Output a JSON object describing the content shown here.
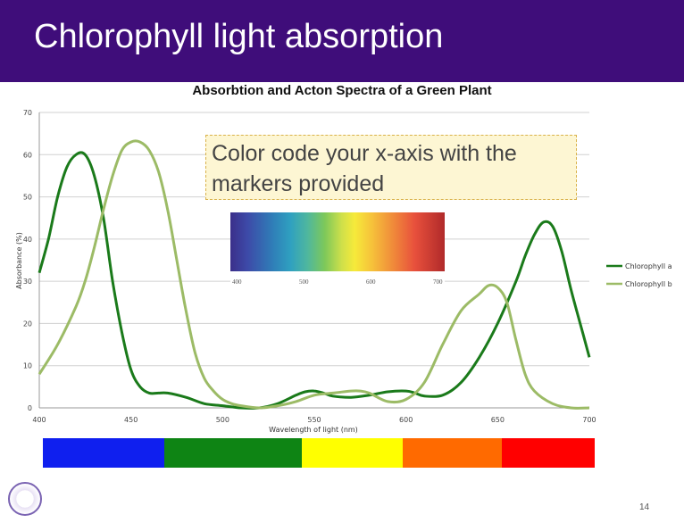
{
  "slide": {
    "title": "Chlorophyll light absorption",
    "page_number": "14",
    "note": "Color code your x-axis with the markers provided",
    "spectrum_scale": [
      "400",
      "500",
      "600",
      "700"
    ],
    "color_bar": [
      "#0f1fef",
      "#0e8414",
      "#ffff00",
      "#ff6a00",
      "#ff0000"
    ],
    "title_bar_color": "#3f0d7a"
  },
  "chart_data": {
    "type": "line",
    "title": "Absorbtion and Acton Spectra of a Green Plant",
    "xlabel": "Wavelength of light (nm)",
    "ylabel": "Absorbance (%)",
    "xlim": [
      400,
      700
    ],
    "ylim": [
      0,
      70
    ],
    "xticks": [
      "400",
      "450",
      "500",
      "550",
      "600",
      "650",
      "700"
    ],
    "yticks": [
      "0",
      "10",
      "20",
      "30",
      "40",
      "50",
      "60",
      "70"
    ],
    "grid": true,
    "legend_position": "right",
    "series": [
      {
        "name": "Chlorophyll a",
        "color": "#1a7a1a",
        "x": [
          400,
          405,
          410,
          415,
          420,
          425,
          430,
          435,
          440,
          445,
          450,
          455,
          460,
          465,
          470,
          480,
          490,
          500,
          510,
          520,
          530,
          540,
          545,
          550,
          555,
          560,
          570,
          580,
          590,
          600,
          605,
          610,
          620,
          630,
          640,
          650,
          660,
          665,
          670,
          675,
          680,
          685,
          690,
          695,
          700
        ],
        "y": [
          32,
          40,
          50,
          57,
          60,
          60,
          55,
          45,
          30,
          18,
          9,
          5,
          3.5,
          3.5,
          3.5,
          2.5,
          1,
          0.5,
          0,
          0,
          1,
          3,
          3.8,
          4,
          3.5,
          2.8,
          2.5,
          3,
          3.8,
          4,
          3.5,
          2.8,
          3,
          6,
          12,
          20,
          30,
          36,
          41,
          44,
          43,
          37,
          28,
          20,
          12
        ]
      },
      {
        "name": "Chlorophyll b",
        "color": "#9cbb66",
        "x": [
          400,
          410,
          420,
          425,
          430,
          435,
          440,
          445,
          450,
          455,
          460,
          465,
          470,
          475,
          480,
          485,
          490,
          495,
          500,
          505,
          510,
          520,
          530,
          540,
          550,
          560,
          570,
          575,
          580,
          590,
          600,
          610,
          620,
          630,
          640,
          645,
          650,
          655,
          660,
          665,
          670,
          680,
          690,
          700
        ],
        "y": [
          8,
          15,
          24,
          30,
          38,
          47,
          55,
          61,
          63,
          63,
          61,
          56,
          47,
          35,
          23,
          13,
          7,
          4,
          2,
          1,
          0.5,
          0,
          0.5,
          1.5,
          3,
          3.5,
          4,
          4,
          3.5,
          1.5,
          2,
          6,
          15,
          23,
          27,
          29,
          28.5,
          25,
          16,
          8,
          4,
          1,
          0,
          0
        ]
      }
    ]
  }
}
